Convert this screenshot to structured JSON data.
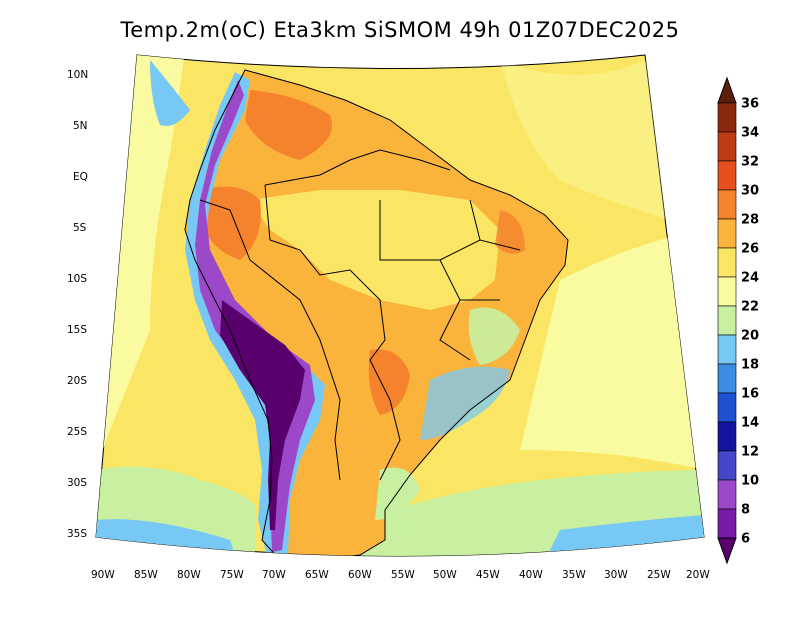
{
  "title": "Temp.2m(oC) Eta3km SiSMOM 49h 01Z07DEC2025",
  "variable": "Temp.2m",
  "unit": "oC",
  "model": "Eta3km",
  "forecast_hour": "49h",
  "valid_time": "01Z07DEC2025",
  "axes": {
    "lat_labels": [
      "10N",
      "5N",
      "EQ",
      "5S",
      "10S",
      "15S",
      "20S",
      "25S",
      "30S",
      "35S"
    ],
    "lon_labels": [
      "90W",
      "85W",
      "80W",
      "75W",
      "70W",
      "65W",
      "60W",
      "55W",
      "50W",
      "45W",
      "40W",
      "35W",
      "30W",
      "25W",
      "20W"
    ]
  },
  "colorbar": {
    "levels": [
      "6",
      "8",
      "10",
      "12",
      "14",
      "16",
      "18",
      "20",
      "22",
      "24",
      "26",
      "28",
      "30",
      "32",
      "34",
      "36"
    ],
    "colors": [
      "#5a006e",
      "#7a1aa8",
      "#9b49c8",
      "#4646c8",
      "#1414a0",
      "#1e50d2",
      "#3c8ce6",
      "#78c8f5",
      "#c8f0a0",
      "#fafaa0",
      "#fae664",
      "#fab43c",
      "#f5822d",
      "#e6501e",
      "#be3c14",
      "#8c2810",
      "#5a1e0a"
    ]
  },
  "palette": {
    "background": "#ffffff",
    "ocean_warm": "#fae664",
    "ocean_pale": "#fafaa0",
    "land_hot": "#f5822d",
    "land_warm": "#fab43c",
    "andes_cold": "#5a006e",
    "south_cool": "#c8f0a0"
  }
}
